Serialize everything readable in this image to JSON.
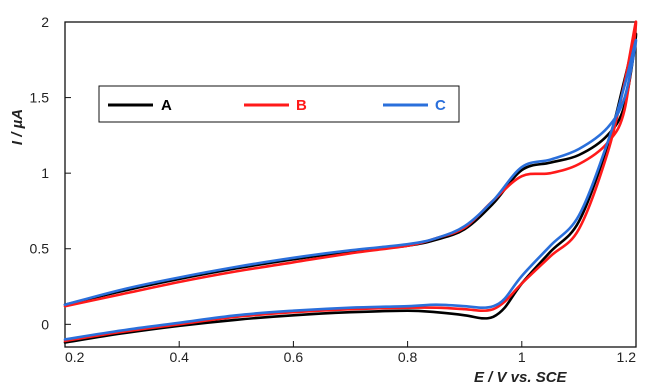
{
  "chart_data": {
    "type": "line",
    "title": "",
    "xlabel": "E / V  vs. SCE",
    "ylabel": "I / µA",
    "xlim": [
      0.2,
      1.2
    ],
    "ylim": [
      -0.15,
      2.0
    ],
    "x_ticks": [
      "0.2",
      "0.4",
      "0.6",
      "0.8",
      "1",
      "1.2"
    ],
    "x_tick_values": [
      0.2,
      0.4,
      0.6,
      0.8,
      1.0,
      1.2
    ],
    "y_ticks": [
      "0",
      "0.5",
      "1",
      "1.5",
      "2"
    ],
    "y_tick_values": [
      0,
      0.5,
      1.0,
      1.5,
      2.0
    ],
    "grid": false,
    "legend_position": "top-left",
    "series": [
      {
        "name": "A",
        "color": "#000000",
        "x": [
          0.2,
          0.3,
          0.4,
          0.5,
          0.6,
          0.7,
          0.8,
          0.85,
          0.9,
          0.95,
          1.0,
          1.05,
          1.1,
          1.15,
          1.18,
          1.2,
          1.18,
          1.15,
          1.1,
          1.05,
          1.0,
          0.97,
          0.95,
          0.93,
          0.9,
          0.85,
          0.8,
          0.7,
          0.6,
          0.5,
          0.4,
          0.3,
          0.2
        ],
        "y": [
          0.13,
          0.22,
          0.3,
          0.37,
          0.43,
          0.48,
          0.52,
          0.56,
          0.63,
          0.8,
          1.02,
          1.07,
          1.12,
          1.25,
          1.45,
          1.92,
          1.62,
          1.18,
          0.68,
          0.48,
          0.27,
          0.11,
          0.05,
          0.04,
          0.06,
          0.08,
          0.09,
          0.08,
          0.06,
          0.03,
          -0.01,
          -0.06,
          -0.12
        ]
      },
      {
        "name": "B",
        "color": "#ff1a1a",
        "x": [
          0.2,
          0.3,
          0.4,
          0.5,
          0.6,
          0.7,
          0.8,
          0.85,
          0.9,
          0.95,
          1.0,
          1.05,
          1.1,
          1.15,
          1.18,
          1.2,
          1.18,
          1.15,
          1.1,
          1.05,
          1.0,
          0.97,
          0.95,
          0.93,
          0.9,
          0.85,
          0.8,
          0.7,
          0.6,
          0.5,
          0.4,
          0.3,
          0.2
        ],
        "y": [
          0.12,
          0.2,
          0.28,
          0.35,
          0.41,
          0.47,
          0.52,
          0.57,
          0.64,
          0.82,
          0.98,
          1.0,
          1.06,
          1.2,
          1.42,
          2.0,
          1.6,
          1.13,
          0.63,
          0.45,
          0.27,
          0.15,
          0.1,
          0.09,
          0.1,
          0.11,
          0.11,
          0.1,
          0.08,
          0.05,
          0.0,
          -0.05,
          -0.11
        ]
      },
      {
        "name": "C",
        "color": "#2a6fdb",
        "x": [
          0.2,
          0.3,
          0.4,
          0.5,
          0.6,
          0.7,
          0.8,
          0.85,
          0.9,
          0.95,
          1.0,
          1.05,
          1.1,
          1.15,
          1.18,
          1.2,
          1.18,
          1.15,
          1.1,
          1.05,
          1.0,
          0.97,
          0.95,
          0.93,
          0.9,
          0.85,
          0.8,
          0.7,
          0.6,
          0.5,
          0.4,
          0.3,
          0.2
        ],
        "y": [
          0.13,
          0.23,
          0.31,
          0.38,
          0.44,
          0.49,
          0.53,
          0.57,
          0.65,
          0.82,
          1.04,
          1.09,
          1.16,
          1.3,
          1.5,
          1.88,
          1.58,
          1.2,
          0.72,
          0.52,
          0.32,
          0.17,
          0.12,
          0.11,
          0.12,
          0.13,
          0.12,
          0.11,
          0.09,
          0.06,
          0.01,
          -0.04,
          -0.1
        ]
      }
    ]
  }
}
